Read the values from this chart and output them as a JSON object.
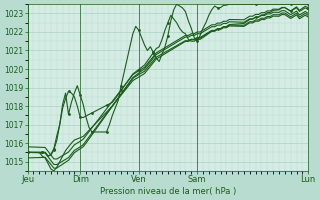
{
  "xlabel": "Pression niveau de la mer( hPa )",
  "ylim": [
    1014.5,
    1023.5
  ],
  "yticks": [
    1015,
    1016,
    1017,
    1018,
    1019,
    1020,
    1021,
    1022,
    1023
  ],
  "xtick_positions": [
    0,
    18,
    38,
    58,
    96
  ],
  "xtick_labels": [
    "Jeu",
    "Dim",
    "Ven",
    "Sam",
    "Lun"
  ],
  "bg_outer": "#b8ddd0",
  "bg_inner": "#d4ece4",
  "grid_color_major": "#a0ccc0",
  "grid_color_minor": "#b8ddd0",
  "line_color": "#1a5c1a",
  "vline_positions": [
    0,
    18,
    38,
    58,
    96
  ],
  "n_points": 97,
  "base_trend": [
    1015.5,
    1015.5,
    1015.5,
    1015.5,
    1015.5,
    1015.5,
    1015.5,
    1015.3,
    1015.1,
    1014.9,
    1014.9,
    1015.0,
    1015.1,
    1015.2,
    1015.3,
    1015.5,
    1015.7,
    1015.8,
    1015.9,
    1016.0,
    1016.2,
    1016.4,
    1016.6,
    1016.8,
    1017.0,
    1017.2,
    1017.4,
    1017.6,
    1017.8,
    1018.0,
    1018.2,
    1018.4,
    1018.6,
    1018.8,
    1019.0,
    1019.2,
    1019.4,
    1019.5,
    1019.6,
    1019.7,
    1019.8,
    1020.0,
    1020.2,
    1020.4,
    1020.6,
    1020.7,
    1020.8,
    1020.9,
    1021.0,
    1021.1,
    1021.2,
    1021.3,
    1021.4,
    1021.5,
    1021.6,
    1021.6,
    1021.7,
    1021.7,
    1021.8,
    1021.8,
    1021.9,
    1022.0,
    1022.1,
    1022.2,
    1022.2,
    1022.3,
    1022.3,
    1022.4,
    1022.4,
    1022.5,
    1022.5,
    1022.5,
    1022.5,
    1022.5,
    1022.5,
    1022.6,
    1022.7,
    1022.7,
    1022.8,
    1022.8,
    1022.9,
    1022.9,
    1023.0,
    1023.0,
    1023.1,
    1023.1,
    1023.1,
    1023.2,
    1023.2,
    1023.1,
    1023.0,
    1023.1,
    1023.2,
    1023.0,
    1023.1,
    1023.2,
    1023.1
  ]
}
